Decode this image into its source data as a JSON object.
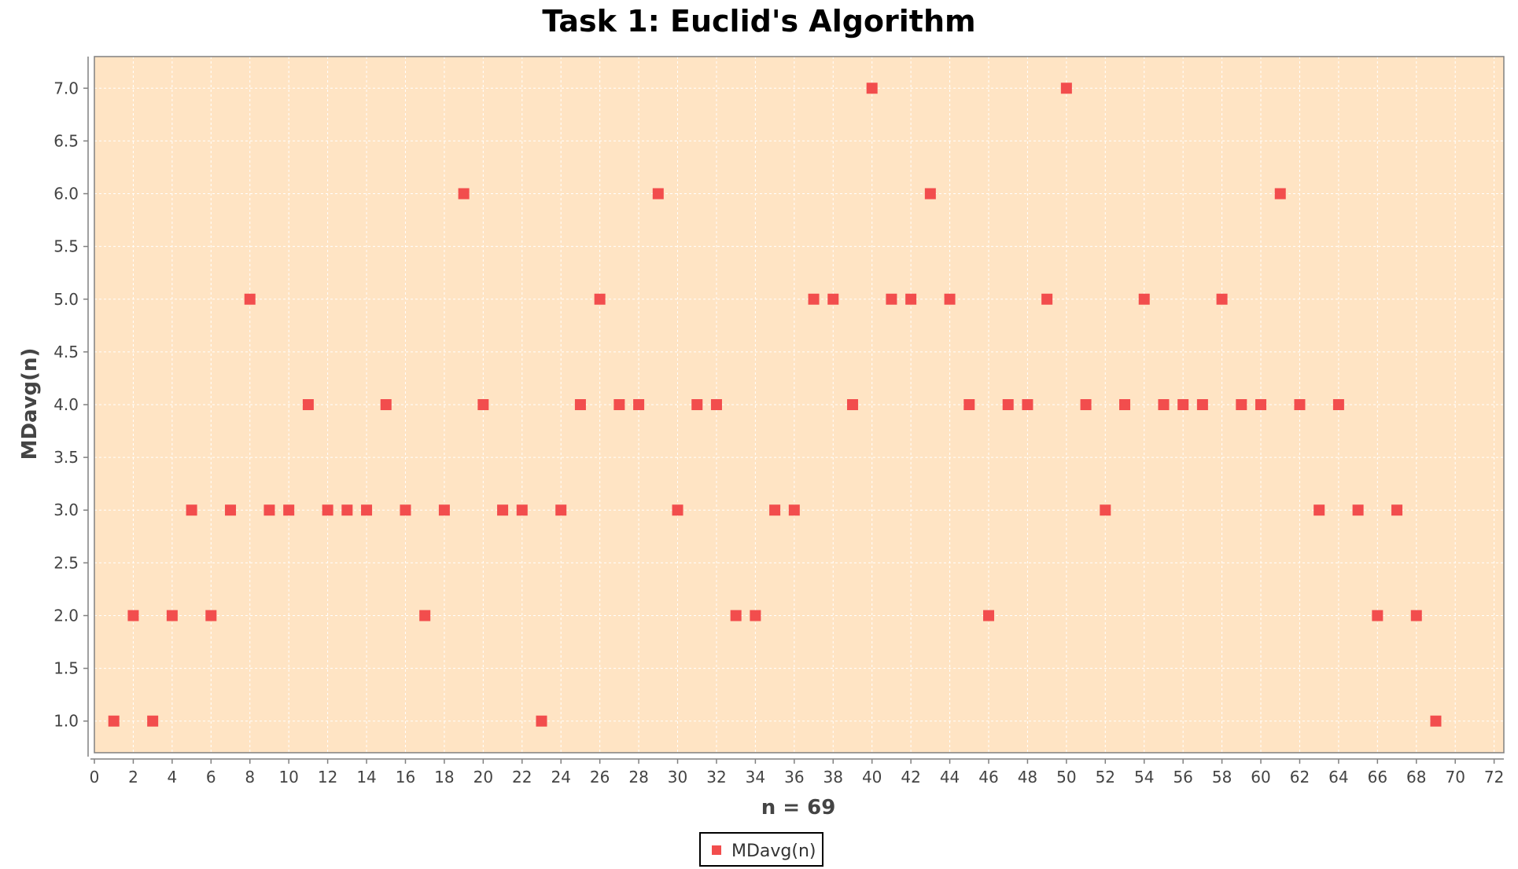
{
  "colors": {
    "plot_background": "#ffe4c4",
    "marker": "#f24d4d",
    "gridline": "#ffffff",
    "axis": "#808080",
    "text": "#444444"
  },
  "chart_data": {
    "type": "scatter",
    "title": "Task 1: Euclid's Algorithm",
    "xlabel": "n = 69",
    "ylabel": "MDavg(n)",
    "xlim": [
      0,
      72.5
    ],
    "ylim": [
      0.7,
      7.3
    ],
    "xticks": [
      0,
      2,
      4,
      6,
      8,
      10,
      12,
      14,
      16,
      18,
      20,
      22,
      24,
      26,
      28,
      30,
      32,
      34,
      36,
      38,
      40,
      42,
      44,
      46,
      48,
      50,
      52,
      54,
      56,
      58,
      60,
      62,
      64,
      66,
      68,
      70,
      72
    ],
    "yticks": [
      "1.0",
      "1.5",
      "2.0",
      "2.5",
      "3.0",
      "3.5",
      "4.0",
      "4.5",
      "5.0",
      "5.5",
      "6.0",
      "6.5",
      "7.0"
    ],
    "grid": true,
    "legend": {
      "placement": "bottom-center",
      "entries": [
        "MDavg(n)"
      ]
    },
    "series": [
      {
        "name": "MDavg(n)",
        "marker": "square",
        "x": [
          1,
          2,
          3,
          4,
          5,
          6,
          7,
          8,
          9,
          10,
          11,
          12,
          13,
          14,
          15,
          16,
          17,
          18,
          19,
          20,
          21,
          22,
          23,
          24,
          25,
          26,
          27,
          28,
          29,
          30,
          31,
          32,
          33,
          34,
          35,
          36,
          37,
          38,
          39,
          40,
          41,
          42,
          43,
          44,
          45,
          46,
          47,
          48,
          49,
          50,
          51,
          52,
          53,
          54,
          55,
          56,
          57,
          58,
          59,
          60,
          61,
          62,
          63,
          64,
          65,
          66,
          67,
          68,
          69
        ],
        "y": [
          1,
          2,
          1,
          2,
          3,
          2,
          3,
          5,
          3,
          3,
          4,
          3,
          3,
          3,
          4,
          3,
          2,
          3,
          6,
          4,
          3,
          3,
          1,
          3,
          4,
          5,
          4,
          4,
          6,
          3,
          4,
          4,
          2,
          2,
          3,
          3,
          5,
          5,
          4,
          7,
          5,
          5,
          6,
          5,
          4,
          2,
          4,
          4,
          5,
          7,
          4,
          3,
          4,
          5,
          4,
          4,
          4,
          5,
          4,
          4,
          6,
          4,
          3,
          4,
          3,
          2,
          3,
          2,
          1
        ]
      }
    ]
  }
}
